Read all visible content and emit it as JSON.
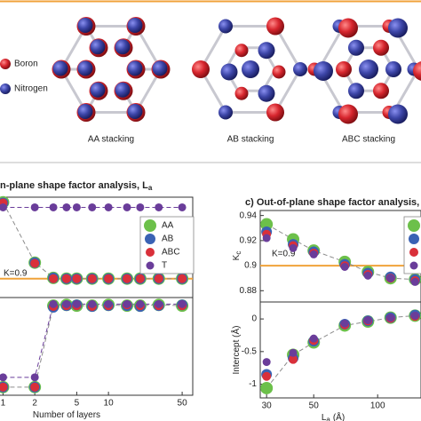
{
  "lattice": {
    "legend": [
      {
        "label": "Boron",
        "color": "#d7262e"
      },
      {
        "label": "Nitrogen",
        "color": "#3d46a8"
      }
    ],
    "panels": [
      {
        "label": "AA stacking"
      },
      {
        "label": "AB stacking"
      },
      {
        "label": "ABC stacking"
      }
    ]
  },
  "chart_data": [
    {
      "type": "scatter",
      "title": "n-plane shape factor analysis, L",
      "title_subscript": "a",
      "xscale": "log",
      "xlim": [
        0.9,
        63
      ],
      "ylim": [
        0.874,
        1.012
      ],
      "legend": "right",
      "x": [
        1,
        2,
        3,
        4,
        5,
        7,
        10,
        15,
        20,
        30,
        50
      ],
      "reference_line": {
        "value": 0.9,
        "label": "K=0.9",
        "color": "#f0a23a"
      },
      "series": [
        {
          "name": "AA",
          "color": "#6cc04a",
          "line_color": "#8c8c8c",
          "values": [
            1.005,
            0.922,
            0.901,
            0.9,
            0.9,
            0.9,
            0.9,
            0.9,
            0.9,
            0.9,
            0.9
          ]
        },
        {
          "name": "AB",
          "color": "#3a62b4",
          "values": [
            1.004,
            0.922,
            0.901,
            0.9,
            0.9,
            0.9,
            0.9,
            0.9,
            0.9,
            0.9,
            0.9
          ]
        },
        {
          "name": "ABC",
          "color": "#d9303a",
          "values": [
            1.004,
            0.921,
            0.9,
            0.9,
            0.9,
            0.9,
            0.9,
            0.9,
            0.9,
            0.9,
            0.9
          ]
        },
        {
          "name": "T",
          "color": "#6a3d9a",
          "line_color": "#6a3d9a",
          "values": [
            0.998,
            0.998,
            0.998,
            0.998,
            0.998,
            0.998,
            0.998,
            0.998,
            0.998,
            0.998,
            0.998
          ]
        }
      ]
    },
    {
      "type": "scatter",
      "xscale": "log",
      "xlim": [
        0.9,
        63
      ],
      "ylim": [
        -1.1,
        0.1
      ],
      "xticks": [
        1,
        2,
        5,
        10,
        50
      ],
      "xlabel": "Number of layers",
      "x": [
        1,
        2,
        3,
        4,
        5,
        7,
        10,
        15,
        20,
        30,
        50
      ],
      "series": [
        {
          "color": "#6cc04a",
          "line_color": "#8c8c8c",
          "values": [
            -1.0,
            -1.0,
            0.0,
            0.01,
            0.0,
            0.0,
            0.01,
            0.0,
            0.0,
            0.01,
            0.0
          ]
        },
        {
          "color": "#3a62b4",
          "values": [
            -1.0,
            -1.0,
            -0.02,
            0.0,
            0.01,
            -0.01,
            0.0,
            0.0,
            -0.01,
            0.0,
            0.01
          ]
        },
        {
          "color": "#d9303a",
          "values": [
            -1.0,
            -1.0,
            -0.01,
            0.0,
            0.0,
            -0.01,
            0.0,
            0.01,
            0.0,
            0.0,
            0.0
          ]
        },
        {
          "color": "#6a3d9a",
          "line_color": "#6a3d9a",
          "values": [
            -0.88,
            -0.88,
            0.02,
            0.02,
            0.02,
            0.02,
            0.02,
            0.02,
            0.02,
            0.02,
            0.02
          ]
        }
      ]
    },
    {
      "type": "scatter",
      "title": "c) Out-of-plane shape factor analysis, L",
      "title_subscript": "c",
      "ylabel": "K",
      "ylabel_subscript": "c",
      "xscale": "log",
      "xlim": [
        28,
        160
      ],
      "ylim": [
        0.871,
        0.944
      ],
      "yticks": [
        0.88,
        0.9,
        0.92,
        0.94
      ],
      "legend": "right",
      "x": [
        30,
        40,
        50,
        70,
        90,
        115,
        150
      ],
      "reference_line": {
        "value": 0.9,
        "label": "K=0.9",
        "color": "#f0a23a"
      },
      "series": [
        {
          "color": "#6cc04a",
          "line_color": "#8c8c8c",
          "values": [
            0.933,
            0.921,
            0.912,
            0.903,
            0.895,
            0.89,
            0.889
          ]
        },
        {
          "color": "#3a62b4",
          "values": [
            0.927,
            0.917,
            0.911,
            0.901,
            0.894,
            0.891,
            0.889
          ]
        },
        {
          "color": "#d9303a",
          "values": [
            0.925,
            0.916,
            0.91,
            0.9,
            0.893,
            0.89,
            0.888
          ]
        },
        {
          "color": "#6a3d9a",
          "values": [
            0.922,
            0.914,
            0.909,
            0.899,
            0.892,
            0.89,
            0.887
          ]
        }
      ]
    },
    {
      "type": "scatter",
      "ylabel": "Intercept (Å)",
      "xlabel": "L",
      "xlabel_subscript": "a",
      "xlabel_suffix": "(Å)",
      "xscale": "log",
      "xlim": [
        28,
        160
      ],
      "ylim": [
        -1.21,
        0.26
      ],
      "yticks": [
        -1,
        -0.5,
        0
      ],
      "xticks": [
        30,
        50,
        100
      ],
      "x": [
        30,
        40,
        50,
        70,
        90,
        115,
        150
      ],
      "series": [
        {
          "color": "#6cc04a",
          "line_color": "#8c8c8c",
          "values": [
            -1.06,
            -0.55,
            -0.36,
            -0.1,
            -0.04,
            0.02,
            0.05
          ]
        },
        {
          "color": "#3a62b4",
          "values": [
            -0.85,
            -0.6,
            -0.34,
            -0.08,
            -0.03,
            0.02,
            0.06
          ]
        },
        {
          "color": "#d9303a",
          "values": [
            -0.88,
            -0.62,
            -0.33,
            -0.09,
            -0.03,
            0.01,
            0.04
          ]
        },
        {
          "color": "#6a3d9a",
          "values": [
            -0.66,
            -0.52,
            -0.3,
            -0.07,
            -0.02,
            0.02,
            0.05
          ]
        }
      ]
    }
  ]
}
